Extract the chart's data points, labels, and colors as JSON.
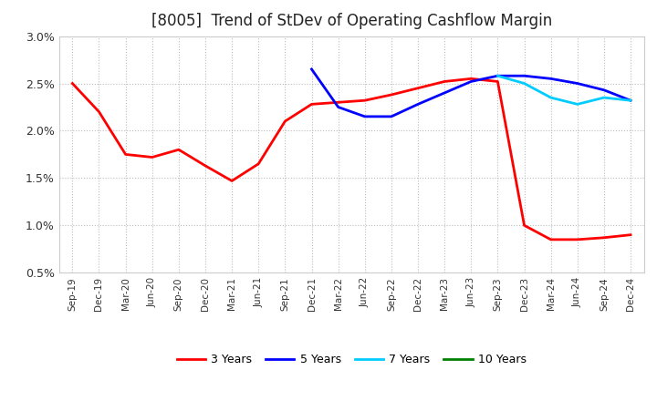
{
  "title": "[8005]  Trend of StDev of Operating Cashflow Margin",
  "ylim": [
    0.005,
    0.03
  ],
  "yticks": [
    0.005,
    0.01,
    0.015,
    0.02,
    0.025,
    0.03
  ],
  "ytick_labels": [
    "0.5%",
    "1.0%",
    "1.5%",
    "2.0%",
    "2.5%",
    "3.0%"
  ],
  "x_labels": [
    "Sep-19",
    "Dec-19",
    "Mar-20",
    "Jun-20",
    "Sep-20",
    "Dec-20",
    "Mar-21",
    "Jun-21",
    "Sep-21",
    "Dec-21",
    "Mar-22",
    "Jun-22",
    "Sep-22",
    "Dec-22",
    "Mar-23",
    "Jun-23",
    "Sep-23",
    "Dec-23",
    "Mar-24",
    "Jun-24",
    "Sep-24",
    "Dec-24"
  ],
  "series": {
    "3 Years": {
      "color": "#FF0000",
      "values": [
        0.025,
        0.022,
        0.0175,
        0.0172,
        0.018,
        0.0163,
        0.0147,
        0.0165,
        0.021,
        0.0228,
        0.023,
        0.0232,
        0.0238,
        0.0245,
        0.0252,
        0.0255,
        0.0252,
        0.01,
        0.0085,
        0.0085,
        0.0087,
        0.009
      ]
    },
    "5 Years": {
      "color": "#0000FF",
      "values": [
        null,
        null,
        null,
        null,
        null,
        null,
        null,
        null,
        null,
        0.0265,
        0.0225,
        0.0215,
        0.0215,
        0.0228,
        0.024,
        0.0252,
        0.0258,
        0.0258,
        0.0255,
        0.025,
        0.0243,
        0.0232
      ]
    },
    "7 Years": {
      "color": "#00CCFF",
      "values": [
        null,
        null,
        null,
        null,
        null,
        null,
        null,
        null,
        null,
        null,
        null,
        null,
        null,
        null,
        null,
        null,
        0.0258,
        0.025,
        0.0235,
        0.0228,
        0.0235,
        0.0232
      ]
    },
    "10 Years": {
      "color": "#008000",
      "values": [
        null,
        null,
        null,
        null,
        null,
        null,
        null,
        null,
        null,
        null,
        null,
        null,
        null,
        null,
        null,
        null,
        null,
        null,
        null,
        null,
        null,
        null
      ]
    }
  },
  "background_color": "#FFFFFF",
  "grid_color": "#AAAAAA",
  "title_fontsize": 12,
  "legend_ncol": 4,
  "line_width": 2.0
}
